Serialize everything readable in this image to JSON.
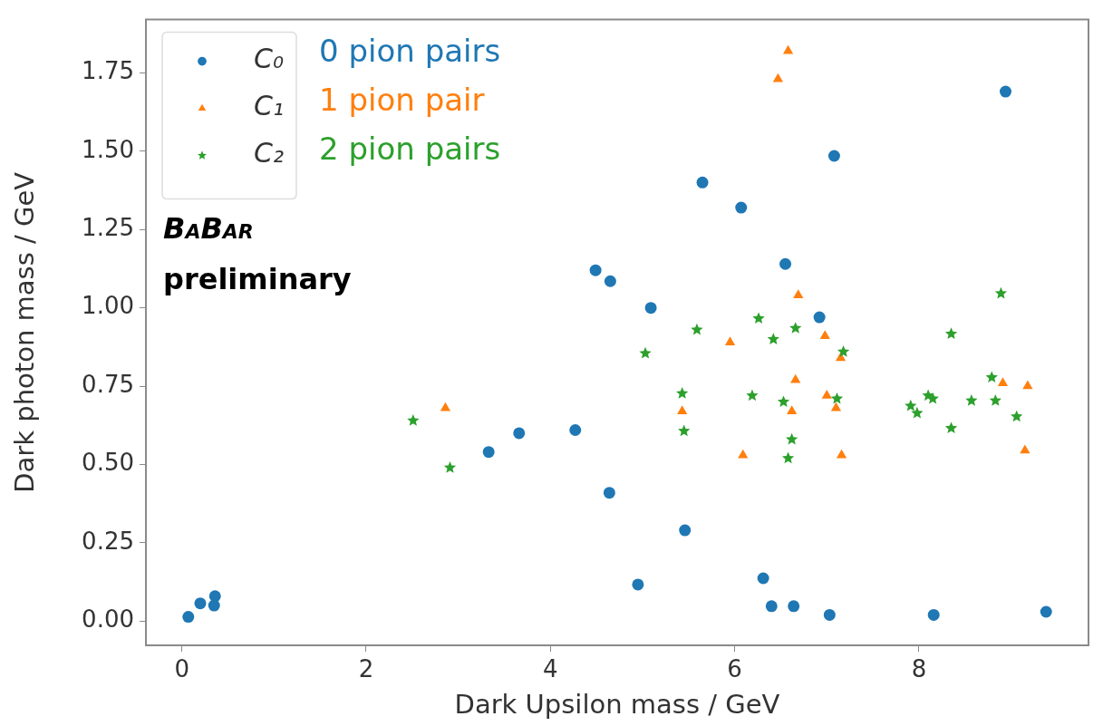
{
  "chart_data": {
    "type": "scatter",
    "xlabel": "Dark Upsilon mass / GeV",
    "ylabel": "Dark photon mass / GeV",
    "xlim": [
      -0.39,
      9.84
    ],
    "ylim": [
      -0.077,
      1.92
    ],
    "xticks": [
      0,
      2,
      4,
      6,
      8
    ],
    "yticks": [
      {
        "value": 0,
        "label": "0.00"
      },
      {
        "value": 0.25,
        "label": "0.25"
      },
      {
        "value": 0.5,
        "label": "0.50"
      },
      {
        "value": 0.75,
        "label": "0.75"
      },
      {
        "value": 1,
        "label": "1.00"
      },
      {
        "value": 1.25,
        "label": "1.25"
      },
      {
        "value": 1.5,
        "label": "1.50"
      },
      {
        "value": 1.75,
        "label": "1.75"
      }
    ],
    "grid": false,
    "legend": "top left",
    "series": [
      {
        "name": "C₀",
        "color": "#1f77b4",
        "marker": "circle",
        "x": [
          0.07,
          0.2,
          0.35,
          0.36,
          3.33,
          3.66,
          4.27,
          4.64,
          4.49,
          4.65,
          5.09,
          4.95,
          5.46,
          6.31,
          6.4,
          6.64,
          7.03,
          8.16,
          9.38,
          5.65,
          6.07,
          8.94,
          7.08,
          6.55,
          6.92
        ],
        "values": [
          0.014,
          0.057,
          0.05,
          0.08,
          0.54,
          0.6,
          0.61,
          0.41,
          1.12,
          1.085,
          1.0,
          0.117,
          0.29,
          0.137,
          0.048,
          0.048,
          0.02,
          0.02,
          0.03,
          1.4,
          1.32,
          1.69,
          1.485,
          1.14,
          0.97
        ]
      },
      {
        "name": "C₁",
        "color": "#ff7f0e",
        "marker": "triangle",
        "x": [
          6.58,
          6.47,
          2.86,
          5.43,
          6.69,
          5.95,
          6.98,
          7.15,
          6.66,
          7.0,
          6.62,
          7.1,
          6.09,
          7.16,
          8.91,
          9.18,
          9.15
        ],
        "values": [
          1.82,
          1.73,
          0.68,
          0.67,
          1.04,
          0.89,
          0.91,
          0.84,
          0.77,
          0.72,
          0.67,
          0.68,
          0.53,
          0.53,
          0.76,
          0.75,
          0.545
        ]
      },
      {
        "name": "C₂",
        "color": "#2ca02c",
        "marker": "star",
        "x": [
          2.51,
          2.91,
          5.59,
          5.03,
          5.43,
          5.45,
          6.26,
          6.66,
          6.42,
          7.18,
          6.19,
          6.53,
          7.11,
          6.62,
          6.58,
          8.89,
          8.35,
          8.79,
          8.1,
          8.15,
          7.91,
          7.98,
          8.57,
          8.83,
          9.06,
          8.35
        ],
        "values": [
          0.64,
          0.49,
          0.93,
          0.855,
          0.727,
          0.607,
          0.966,
          0.935,
          0.9,
          0.86,
          0.72,
          0.7,
          0.71,
          0.58,
          0.52,
          1.046,
          0.917,
          0.778,
          0.72,
          0.71,
          0.687,
          0.664,
          0.704,
          0.704,
          0.653,
          0.616
        ]
      }
    ],
    "annotations": [
      "0 pion pairs",
      "1 pion pair",
      "2 pion pairs",
      "BaBar",
      "preliminary"
    ]
  }
}
